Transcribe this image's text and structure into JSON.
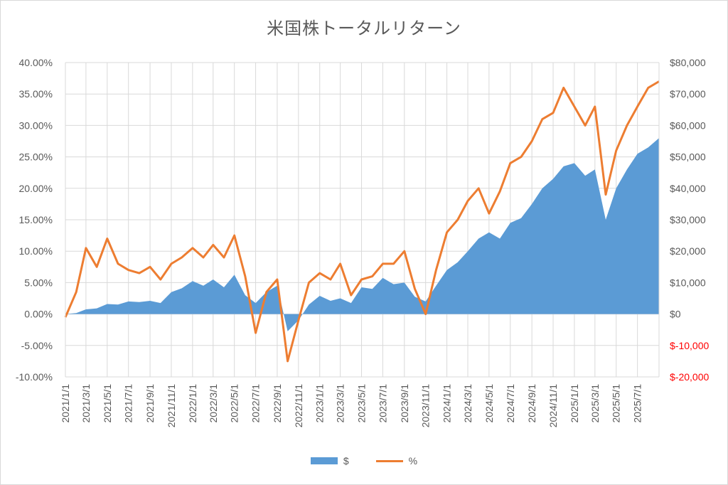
{
  "chart_data": {
    "type": "area",
    "title": "米国株トータルリターン",
    "x_tick_labels": [
      "2021/1/1",
      "2021/3/1",
      "2021/5/1",
      "2021/7/1",
      "2021/9/1",
      "2021/11/1",
      "2022/1/1",
      "2022/3/1",
      "2022/5/1",
      "2022/7/1",
      "2022/9/1",
      "2022/11/1",
      "2023/1/1",
      "2023/3/1",
      "2023/5/1",
      "2023/7/1",
      "2023/9/1",
      "2023/11/1",
      "2024/1/1",
      "2024/3/1",
      "2024/5/1",
      "2024/7/1",
      "2024/9/1",
      "2024/11/1",
      "2025/1/1",
      "2025/3/1",
      "2025/5/1",
      "2025/7/1"
    ],
    "y_left": {
      "ticks": [
        "40.00%",
        "35.00%",
        "30.00%",
        "25.00%",
        "20.00%",
        "15.00%",
        "10.00%",
        "5.00%",
        "0.00%",
        "-5.00%",
        "-10.00%"
      ],
      "range": [
        -10,
        40
      ]
    },
    "y_right": {
      "ticks": [
        "$80,000",
        "$70,000",
        "$60,000",
        "$50,000",
        "$40,000",
        "$30,000",
        "$20,000",
        "$10,000",
        "$0",
        "$-10,000",
        "$-20,000"
      ],
      "range": [
        -20000,
        80000
      ],
      "negative_color": "#ff0000"
    },
    "series": [
      {
        "name": "$",
        "type": "area",
        "axis": "right",
        "color": "#5b9bd5",
        "x": [
          "2021/1/1",
          "2021/2/1",
          "2021/3/1",
          "2021/4/1",
          "2021/5/1",
          "2021/6/1",
          "2021/7/1",
          "2021/8/1",
          "2021/9/1",
          "2021/10/1",
          "2021/11/1",
          "2021/12/1",
          "2022/1/1",
          "2022/2/1",
          "2022/3/1",
          "2022/4/1",
          "2022/5/1",
          "2022/6/1",
          "2022/7/1",
          "2022/8/1",
          "2022/9/1",
          "2022/10/1",
          "2022/11/1",
          "2022/12/1",
          "2023/1/1",
          "2023/2/1",
          "2023/3/1",
          "2023/4/1",
          "2023/5/1",
          "2023/6/1",
          "2023/7/1",
          "2023/8/1",
          "2023/9/1",
          "2023/10/1",
          "2023/11/1",
          "2023/12/1",
          "2024/1/1",
          "2024/2/1",
          "2024/3/1",
          "2024/4/1",
          "2024/5/1",
          "2024/6/1",
          "2024/7/1",
          "2024/8/1",
          "2024/9/1",
          "2024/10/1",
          "2024/11/1",
          "2024/12/1",
          "2025/1/1",
          "2025/2/1",
          "2025/3/1",
          "2025/4/1",
          "2025/5/1",
          "2025/6/1",
          "2025/7/1",
          "2025/8/1",
          "2025/9/1"
        ],
        "values": [
          0,
          300,
          1500,
          1800,
          3200,
          3000,
          4000,
          3800,
          4200,
          3500,
          7000,
          8200,
          10500,
          9000,
          11000,
          8500,
          12500,
          6000,
          3500,
          7000,
          9000,
          -5500,
          -2000,
          3000,
          5800,
          4200,
          5000,
          3500,
          8500,
          8000,
          11500,
          9500,
          10000,
          5500,
          4000,
          9000,
          14000,
          16500,
          20000,
          24000,
          26000,
          24000,
          29000,
          30500,
          35000,
          40000,
          43000,
          47000,
          48000,
          44000,
          46000,
          30000,
          40000,
          46000,
          51000,
          53000,
          56000
        ]
      },
      {
        "name": "%",
        "type": "line",
        "axis": "left",
        "color": "#ed7d31",
        "x": [
          "2021/1/1",
          "2021/2/1",
          "2021/3/1",
          "2021/4/1",
          "2021/5/1",
          "2021/6/1",
          "2021/7/1",
          "2021/8/1",
          "2021/9/1",
          "2021/10/1",
          "2021/11/1",
          "2021/12/1",
          "2022/1/1",
          "2022/2/1",
          "2022/3/1",
          "2022/4/1",
          "2022/5/1",
          "2022/6/1",
          "2022/7/1",
          "2022/8/1",
          "2022/9/1",
          "2022/10/1",
          "2022/11/1",
          "2022/12/1",
          "2023/1/1",
          "2023/2/1",
          "2023/3/1",
          "2023/4/1",
          "2023/5/1",
          "2023/6/1",
          "2023/7/1",
          "2023/8/1",
          "2023/9/1",
          "2023/10/1",
          "2023/11/1",
          "2023/12/1",
          "2024/1/1",
          "2024/2/1",
          "2024/3/1",
          "2024/4/1",
          "2024/5/1",
          "2024/6/1",
          "2024/7/1",
          "2024/8/1",
          "2024/9/1",
          "2024/10/1",
          "2024/11/1",
          "2024/12/1",
          "2025/1/1",
          "2025/2/1",
          "2025/3/1",
          "2025/4/1",
          "2025/5/1",
          "2025/6/1",
          "2025/7/1",
          "2025/8/1",
          "2025/9/1"
        ],
        "values": [
          -0.5,
          3.5,
          10.5,
          7.5,
          12,
          8,
          7,
          6.5,
          7.5,
          5.5,
          8,
          9,
          10.5,
          9,
          11,
          9,
          12.5,
          6,
          -3,
          3.5,
          5.5,
          -7.5,
          -1,
          5,
          6.5,
          5.5,
          8,
          3,
          5.5,
          6,
          8,
          8,
          10,
          4,
          0,
          7,
          13,
          15,
          18,
          20,
          16,
          19.5,
          24,
          25,
          27.5,
          31,
          32,
          36,
          33,
          30,
          33,
          19,
          26,
          30,
          33,
          36,
          37
        ]
      }
    ],
    "legend": {
      "position": "bottom"
    }
  }
}
